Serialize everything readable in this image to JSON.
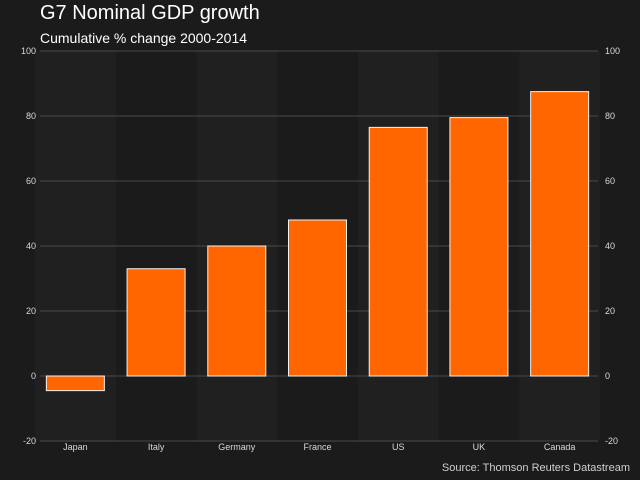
{
  "chart_data": {
    "type": "bar",
    "title": "G7 Nominal GDP growth",
    "subtitle": "Cumulative % change 2000-2014",
    "categories": [
      "Japan",
      "Italy",
      "Germany",
      "France",
      "US",
      "UK",
      "Canada"
    ],
    "values": [
      -4.5,
      33,
      40,
      48,
      76.5,
      79.5,
      87.5
    ],
    "xlabel": "",
    "ylabel": "",
    "ylim": [
      -20,
      100
    ],
    "yticks": [
      -20,
      0,
      20,
      40,
      60,
      80,
      100
    ],
    "grid": true,
    "legend": "none",
    "source": "Source: Thomson Reuters Datastream",
    "colors": {
      "bar": "#ff6600",
      "bar_outline": "#f2f2f2",
      "background": "#1b1b1b",
      "plot_band": "#202020",
      "grid": "#4a4a4a"
    }
  }
}
